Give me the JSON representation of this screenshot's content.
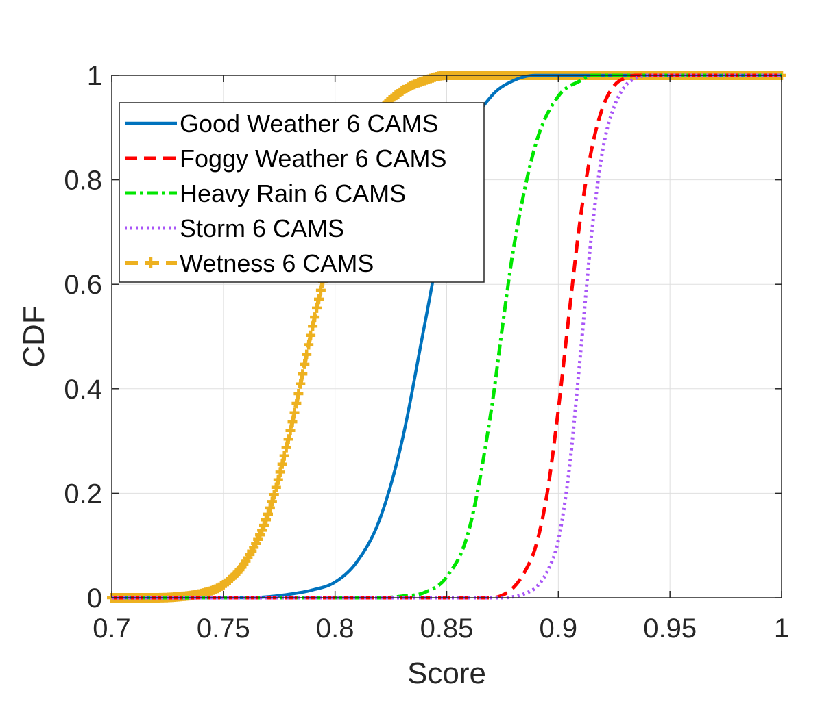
{
  "chart_data": {
    "type": "line",
    "title": "",
    "xlabel": "Score",
    "ylabel": "CDF",
    "xlim": [
      0.7,
      1
    ],
    "ylim": [
      0,
      1
    ],
    "grid": true,
    "legend_position": "top-left",
    "x_ticks": [
      0.7,
      0.75,
      0.8,
      0.85,
      0.9,
      0.95,
      1
    ],
    "x_tick_labels": [
      "0.7",
      "0.75",
      "0.8",
      "0.85",
      "0.9",
      "0.95",
      "1"
    ],
    "y_ticks": [
      0,
      0.2,
      0.4,
      0.6,
      0.8,
      1
    ],
    "y_tick_labels": [
      "0",
      "0.2",
      "0.4",
      "0.6",
      "0.8",
      "1"
    ],
    "series": [
      {
        "name": "Good Weather 6 CAMS",
        "color": "#0072BD",
        "style": "solid",
        "x": [
          0.7,
          0.76,
          0.77,
          0.78,
          0.79,
          0.8,
          0.81,
          0.82,
          0.83,
          0.84,
          0.85,
          0.86,
          0.87,
          0.88,
          0.89,
          0.9,
          1.0
        ],
        "y": [
          0.0,
          0.0,
          0.002,
          0.007,
          0.015,
          0.03,
          0.07,
          0.15,
          0.3,
          0.52,
          0.74,
          0.89,
          0.96,
          0.99,
          1.0,
          1.0,
          1.0
        ]
      },
      {
        "name": "Foggy Weather 6 CAMS",
        "color": "#FF0000",
        "style": "dashed",
        "x": [
          0.7,
          0.87,
          0.875,
          0.88,
          0.885,
          0.89,
          0.895,
          0.9,
          0.905,
          0.91,
          0.915,
          0.92,
          0.925,
          0.93,
          0.935,
          1.0
        ],
        "y": [
          0.0,
          0.0,
          0.005,
          0.02,
          0.05,
          0.1,
          0.2,
          0.36,
          0.55,
          0.73,
          0.86,
          0.94,
          0.98,
          0.995,
          1.0,
          1.0
        ]
      },
      {
        "name": "Heavy Rain 6 CAMS",
        "color": "#00E600",
        "style": "dashdot",
        "x": [
          0.7,
          0.82,
          0.83,
          0.84,
          0.85,
          0.86,
          0.87,
          0.875,
          0.88,
          0.89,
          0.9,
          0.91,
          0.915,
          1.0
        ],
        "y": [
          0.0,
          0.0,
          0.003,
          0.01,
          0.04,
          0.13,
          0.36,
          0.52,
          0.67,
          0.87,
          0.96,
          0.99,
          1.0,
          1.0
        ]
      },
      {
        "name": "Storm 6 CAMS",
        "color": "#A855F7",
        "style": "dotted",
        "x": [
          0.7,
          0.875,
          0.88,
          0.885,
          0.89,
          0.895,
          0.9,
          0.905,
          0.91,
          0.915,
          0.92,
          0.925,
          0.93,
          0.935,
          0.94,
          1.0
        ],
        "y": [
          0.0,
          0.0,
          0.002,
          0.008,
          0.02,
          0.05,
          0.11,
          0.25,
          0.47,
          0.7,
          0.86,
          0.94,
          0.98,
          0.995,
          1.0,
          1.0
        ]
      },
      {
        "name": "Wetness 6 CAMS",
        "color": "#EDB120",
        "style": "plus-markers",
        "x": [
          0.7,
          0.72,
          0.73,
          0.74,
          0.75,
          0.76,
          0.77,
          0.78,
          0.79,
          0.8,
          0.81,
          0.82,
          0.83,
          0.84,
          0.85,
          0.86,
          1.0
        ],
        "y": [
          0.0,
          0.0,
          0.002,
          0.008,
          0.025,
          0.07,
          0.16,
          0.32,
          0.52,
          0.7,
          0.84,
          0.93,
          0.97,
          0.99,
          1.0,
          1.0,
          1.0
        ]
      }
    ]
  }
}
